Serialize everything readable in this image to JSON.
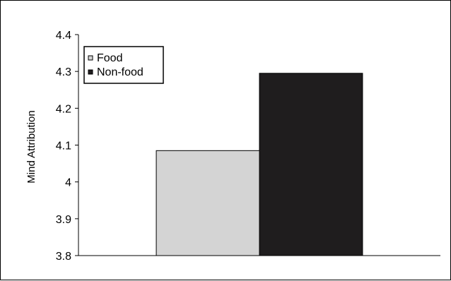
{
  "chart_data": {
    "type": "bar",
    "title": "",
    "xlabel": "",
    "ylabel": "Mind Attribution",
    "ylim": [
      3.8,
      4.4
    ],
    "yticks": [
      "3.8",
      "3.9",
      "4",
      "4.1",
      "4.2",
      "4.3",
      "4.4"
    ],
    "grid": false,
    "legend_position": "top-left",
    "categories": [
      ""
    ],
    "series": [
      {
        "name": "Food",
        "values": [
          4.085
        ],
        "color": "#d4d4d4"
      },
      {
        "name": "Non-food",
        "values": [
          4.295
        ],
        "color": "#1f1d1e"
      }
    ]
  }
}
